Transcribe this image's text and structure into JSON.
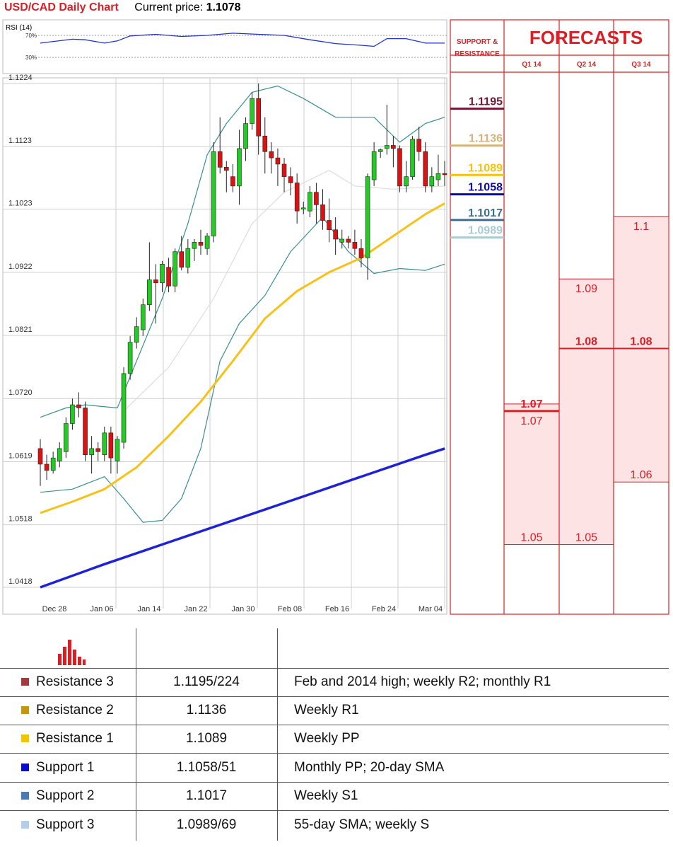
{
  "title": {
    "pair": "USD/CAD Daily Chart",
    "price_label": "Current price:",
    "price": "1.1078"
  },
  "rsi_panel": {
    "label": "RSI (14)",
    "levels": [
      "70%",
      "30%"
    ]
  },
  "forecast_panel": {
    "support_resistance_label": [
      "SUPPORT &",
      "RESISTANCE"
    ],
    "title": "FORECASTS",
    "quarters": [
      "Q1 14",
      "Q2 14",
      "Q3 14"
    ]
  },
  "chart_data": {
    "type": "candlestick",
    "title": "USD/CAD Daily Chart",
    "y_ticks": [
      1.1224,
      1.1123,
      1.1023,
      1.0922,
      1.0821,
      1.072,
      1.0619,
      1.0518,
      1.0418
    ],
    "ylim": [
      1.0418,
      1.1224
    ],
    "x_ticks": [
      "Dec 28",
      "Jan 06",
      "Jan 14",
      "Jan 22",
      "Jan 30",
      "Feb 08",
      "Feb 16",
      "Feb 24",
      "Mar 04"
    ],
    "grid": true,
    "candles": [
      [
        1.064,
        1.0655,
        1.058,
        1.0615
      ],
      [
        1.0615,
        1.063,
        1.059,
        1.0605
      ],
      [
        1.0605,
        1.0635,
        1.06,
        1.0625
      ],
      [
        1.062,
        1.065,
        1.061,
        1.064
      ],
      [
        1.0635,
        1.069,
        1.0625,
        1.068
      ],
      [
        1.068,
        1.072,
        1.067,
        1.071
      ],
      [
        1.071,
        1.073,
        1.069,
        1.0705
      ],
      [
        1.0705,
        1.0715,
        1.062,
        1.063
      ],
      [
        1.063,
        1.066,
        1.06,
        1.064
      ],
      [
        1.064,
        1.065,
        1.062,
        1.0635
      ],
      [
        1.063,
        1.0675,
        1.062,
        1.0665
      ],
      [
        1.0665,
        1.0675,
        1.06,
        1.0625
      ],
      [
        1.062,
        1.066,
        1.06,
        1.0655
      ],
      [
        1.065,
        1.077,
        1.064,
        1.076
      ],
      [
        1.076,
        1.082,
        1.075,
        1.081
      ],
      [
        1.081,
        1.085,
        1.08,
        1.0835
      ],
      [
        1.083,
        1.088,
        1.082,
        1.087
      ],
      [
        1.087,
        1.097,
        1.086,
        1.091
      ],
      [
        1.091,
        1.0935,
        1.084,
        1.0905
      ],
      [
        1.0905,
        1.094,
        1.089,
        1.0935
      ],
      [
        1.093,
        1.0945,
        1.089,
        1.09
      ],
      [
        1.09,
        1.096,
        1.089,
        1.0955
      ],
      [
        1.0955,
        1.098,
        1.0925,
        1.093
      ],
      [
        1.093,
        1.0975,
        1.092,
        1.096
      ],
      [
        1.096,
        1.0975,
        1.094,
        1.097
      ],
      [
        1.097,
        1.099,
        1.095,
        1.0965
      ],
      [
        1.096,
        1.0985,
        1.095,
        1.098
      ],
      [
        1.098,
        1.113,
        1.097,
        1.1115
      ],
      [
        1.1115,
        1.117,
        1.108,
        1.109
      ],
      [
        1.109,
        1.11,
        1.105,
        1.1085
      ],
      [
        1.1075,
        1.1095,
        1.105,
        1.106
      ],
      [
        1.106,
        1.115,
        1.103,
        1.112
      ],
      [
        1.112,
        1.117,
        1.11,
        1.116
      ],
      [
        1.116,
        1.121,
        1.115,
        1.12
      ],
      [
        1.12,
        1.1224,
        1.111,
        1.114
      ],
      [
        1.114,
        1.117,
        1.108,
        1.1115
      ],
      [
        1.1115,
        1.113,
        1.108,
        1.1105
      ],
      [
        1.1105,
        1.112,
        1.106,
        1.1095
      ],
      [
        1.1095,
        1.1105,
        1.105,
        1.1075
      ],
      [
        1.1075,
        1.109,
        1.1045,
        1.1065
      ],
      [
        1.1065,
        1.108,
        1.1,
        1.102
      ],
      [
        1.1025,
        1.1035,
        1.1015,
        1.1025
      ],
      [
        1.102,
        1.106,
        1.101,
        1.105
      ],
      [
        1.105,
        1.1065,
        1.1,
        1.103
      ],
      [
        1.103,
        1.1055,
        1.099,
        1.1005
      ],
      [
        1.1005,
        1.104,
        1.097,
        1.099
      ],
      [
        1.099,
        1.101,
        1.095,
        1.0975
      ],
      [
        1.097,
        1.099,
        1.096,
        1.0975
      ],
      [
        1.0975,
        1.098,
        1.096,
        1.097
      ],
      [
        1.097,
        1.099,
        1.095,
        1.096
      ],
      [
        1.096,
        1.0975,
        1.093,
        1.0945
      ],
      [
        1.0945,
        1.108,
        1.091,
        1.1075
      ],
      [
        1.107,
        1.113,
        1.106,
        1.1115
      ],
      [
        1.1115,
        1.112,
        1.1105,
        1.1118
      ],
      [
        1.112,
        1.119,
        1.111,
        1.1125
      ],
      [
        1.1125,
        1.114,
        1.109,
        1.112
      ],
      [
        1.112,
        1.1125,
        1.105,
        1.106
      ],
      [
        1.106,
        1.11,
        1.105,
        1.1075
      ],
      [
        1.1075,
        1.114,
        1.107,
        1.1135
      ],
      [
        1.1135,
        1.1155,
        1.11,
        1.1115
      ],
      [
        1.1115,
        1.113,
        1.105,
        1.106
      ],
      [
        1.106,
        1.109,
        1.105,
        1.1075
      ],
      [
        1.107,
        1.111,
        1.106,
        1.108
      ],
      [
        1.108,
        1.11,
        1.106,
        1.1078
      ]
    ],
    "ma_55": [
      [
        0,
        1.0537
      ],
      [
        5,
        1.0555
      ],
      [
        10,
        1.0575
      ],
      [
        15,
        1.061
      ],
      [
        20,
        1.066
      ],
      [
        25,
        1.0715
      ],
      [
        30,
        1.078
      ],
      [
        35,
        1.0848
      ],
      [
        40,
        1.0892
      ],
      [
        45,
        1.0922
      ],
      [
        50,
        1.0945
      ],
      [
        55,
        1.098
      ],
      [
        60,
        1.1015
      ],
      [
        63,
        1.1032
      ]
    ],
    "ma_200": [
      [
        0,
        1.0418
      ],
      [
        10,
        1.0455
      ],
      [
        20,
        1.049
      ],
      [
        30,
        1.0525
      ],
      [
        40,
        1.056
      ],
      [
        50,
        1.0595
      ],
      [
        60,
        1.063
      ],
      [
        63,
        1.064
      ]
    ],
    "bollinger_upper": [
      [
        0,
        1.069
      ],
      [
        4,
        1.0705
      ],
      [
        7,
        1.071
      ],
      [
        12,
        1.0705
      ],
      [
        15,
        1.078
      ],
      [
        19,
        1.088
      ],
      [
        23,
        1.1
      ],
      [
        26,
        1.111
      ],
      [
        29,
        1.116
      ],
      [
        33,
        1.121
      ],
      [
        37,
        1.122
      ],
      [
        41,
        1.12
      ],
      [
        46,
        1.117
      ],
      [
        52,
        1.117
      ],
      [
        56,
        1.113
      ],
      [
        60,
        1.116
      ],
      [
        63,
        1.117
      ]
    ],
    "bollinger_lower": [
      [
        0,
        1.057
      ],
      [
        5,
        1.0575
      ],
      [
        10,
        1.0595
      ],
      [
        13,
        1.056
      ],
      [
        16,
        1.0522
      ],
      [
        19,
        1.0525
      ],
      [
        22,
        1.056
      ],
      [
        25,
        1.064
      ],
      [
        28,
        1.078
      ],
      [
        31,
        1.084
      ],
      [
        35,
        1.0885
      ],
      [
        39,
        1.0955
      ],
      [
        44,
        1.101
      ],
      [
        48,
        1.0955
      ],
      [
        52,
        1.092
      ],
      [
        56,
        1.0928
      ],
      [
        60,
        1.0925
      ],
      [
        63,
        1.0935
      ]
    ],
    "bollinger_mid": [
      [
        13,
        1.07
      ],
      [
        20,
        1.077
      ],
      [
        27,
        1.088
      ],
      [
        33,
        1.1
      ],
      [
        38,
        1.105
      ],
      [
        45,
        1.1085
      ],
      [
        49,
        1.106
      ],
      [
        55,
        1.1055
      ],
      [
        63,
        1.106
      ]
    ],
    "rsi": [
      [
        0,
        56
      ],
      [
        5,
        63
      ],
      [
        7,
        62
      ],
      [
        10,
        56
      ],
      [
        12,
        60
      ],
      [
        14,
        69
      ],
      [
        18,
        72
      ],
      [
        22,
        68
      ],
      [
        26,
        70
      ],
      [
        30,
        74
      ],
      [
        34,
        72
      ],
      [
        38,
        70
      ],
      [
        42,
        62
      ],
      [
        46,
        55
      ],
      [
        50,
        52
      ],
      [
        52,
        50
      ],
      [
        54,
        64
      ],
      [
        57,
        64
      ],
      [
        60,
        56
      ],
      [
        63,
        56
      ]
    ],
    "levels": [
      {
        "label": "1.1195",
        "value": 1.1195,
        "color": "#6e1a37"
      },
      {
        "label": "1.1136",
        "value": 1.1136,
        "color": "#d8b277"
      },
      {
        "label": "1.1089",
        "value": 1.1089,
        "color": "#f5c211"
      },
      {
        "label": "1.1058",
        "value": 1.1058,
        "color": "#0a0aa8"
      },
      {
        "label": "1.1017",
        "value": 1.1017,
        "color": "#3b6f8f"
      },
      {
        "label": "1.0989",
        "value": 1.0989,
        "color": "#a9cbd4"
      }
    ],
    "forecasts": [
      {
        "quarter": "Q1 14",
        "main": "1.07",
        "main_value": 1.07,
        "high": "1.07",
        "high_value": 1.07,
        "low": "1.05",
        "low_value": 1.05
      },
      {
        "quarter": "Q2 14",
        "main": "1.08",
        "main_value": 1.08,
        "high": "1.09",
        "high_value": 1.09,
        "low": "1.05",
        "low_value": 1.05
      },
      {
        "quarter": "Q3 14",
        "main": "1.08",
        "main_value": 1.08,
        "high": "1.1",
        "high_value": 1.1,
        "low": "1.06",
        "low_value": 1.06
      }
    ]
  },
  "levels_table": [
    {
      "name": "Resistance 3",
      "value": "1.1195/224",
      "comment": "Feb and 2014 high; weekly R2; monthly R1",
      "color": "#a23a3a"
    },
    {
      "name": "Resistance 2",
      "value": "1.1136",
      "comment": "Weekly R1",
      "color": "#c8960c"
    },
    {
      "name": "Resistance 1",
      "value": "1.1089",
      "comment": "Weekly PP",
      "color": "#f5c400"
    },
    {
      "name": "Support 1",
      "value": "1.1058/51",
      "comment": "Monthly PP; 20-day SMA",
      "color": "#0a0ad0"
    },
    {
      "name": "Support 2",
      "value": "1.1017",
      "comment": "Weekly S1",
      "color": "#4a7ab8"
    },
    {
      "name": "Support 3",
      "value": "1.0989/69",
      "comment": "55-day SMA; weekly S",
      "color": "#b5cde6"
    }
  ],
  "colors": {
    "accent_red": "#d81f26",
    "bull": "#22cc22",
    "bear": "#dd1111",
    "forecast_fill": "#fde3e4"
  }
}
